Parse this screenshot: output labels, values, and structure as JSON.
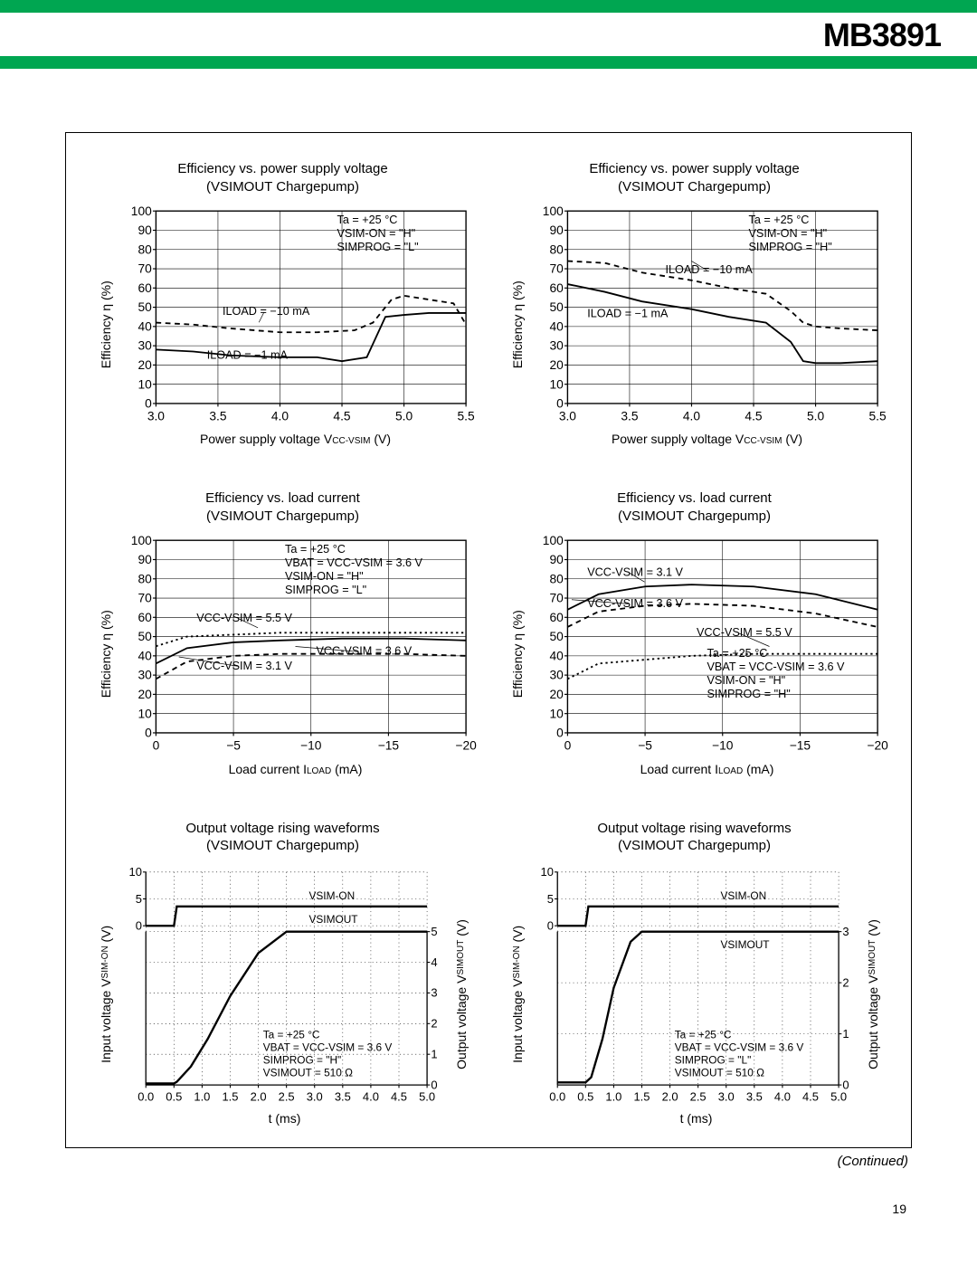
{
  "colors": {
    "green": "#00a651",
    "ink": "#000000",
    "bg": "#ffffff",
    "grid": "#000000"
  },
  "header": {
    "part_number": "MB3891"
  },
  "continued": "(Continued)",
  "page_number": "19",
  "charts": [
    {
      "id": "eff-vs-vcc-L",
      "title_l1": "Efficiency vs. power supply voltage",
      "title_l2": "(VSIMOUT Chargepump)",
      "ylabel": "Efficiency η (%)",
      "xlabel_pre": "Power supply voltage V",
      "xlabel_sub": "CC-VSIM",
      "xlabel_post": " (V)",
      "ylim": [
        0,
        100
      ],
      "ytick_step": 10,
      "xlim": [
        3.0,
        5.5
      ],
      "xticks": [
        3.0,
        3.5,
        4.0,
        4.5,
        5.0,
        5.5
      ],
      "conditions": [
        "Ta = +25 °C",
        "VSIM-ON = \"H\"",
        "SIMPROG = \"L\""
      ],
      "cond_pos": [
        210,
        20
      ],
      "series_labels": [
        {
          "text": "ILOAD = −10 mA",
          "x": 100,
          "y": 108,
          "leader_to": [
            135,
            115
          ]
        },
        {
          "text": "ILOAD = −1 mA",
          "x": 85,
          "y": 150
        }
      ],
      "series": [
        {
          "style": "dashed",
          "points": [
            [
              3.0,
              42
            ],
            [
              3.3,
              41
            ],
            [
              3.6,
              39
            ],
            [
              4.0,
              37
            ],
            [
              4.3,
              37
            ],
            [
              4.6,
              38
            ],
            [
              4.75,
              42
            ],
            [
              4.9,
              54
            ],
            [
              5.0,
              56
            ],
            [
              5.2,
              54
            ],
            [
              5.4,
              52
            ],
            [
              5.5,
              41
            ]
          ]
        },
        {
          "style": "solid",
          "points": [
            [
              3.0,
              28
            ],
            [
              3.3,
              27
            ],
            [
              3.6,
              25
            ],
            [
              4.0,
              24
            ],
            [
              4.3,
              24
            ],
            [
              4.5,
              22
            ],
            [
              4.7,
              24
            ],
            [
              4.8,
              38
            ],
            [
              4.85,
              45
            ],
            [
              5.0,
              46
            ],
            [
              5.2,
              47
            ],
            [
              5.5,
              47
            ]
          ]
        }
      ]
    },
    {
      "id": "eff-vs-vcc-H",
      "title_l1": "Efficiency vs. power supply voltage",
      "title_l2": "(VSIMOUT Chargepump)",
      "ylabel": "Efficiency η (%)",
      "xlabel_pre": "Power supply voltage V",
      "xlabel_sub": "CC-VSIM",
      "xlabel_post": " (V)",
      "ylim": [
        0,
        100
      ],
      "ytick_step": 10,
      "xlim": [
        3.0,
        5.5
      ],
      "xticks": [
        3.0,
        3.5,
        4.0,
        4.5,
        5.0,
        5.5
      ],
      "conditions": [
        "Ta = +25 °C",
        "VSIM-ON = \"H\"",
        "SIMPROG = \"H\""
      ],
      "cond_pos": [
        210,
        20
      ],
      "series_labels": [
        {
          "text": "ILOAD = −10 mA",
          "x": 130,
          "y": 68,
          "leader_to": [
            155,
            56
          ]
        },
        {
          "text": "ILOAD = −1 mA",
          "x": 55,
          "y": 110
        }
      ],
      "series": [
        {
          "style": "dashed",
          "points": [
            [
              3.0,
              74
            ],
            [
              3.3,
              73
            ],
            [
              3.6,
              68
            ],
            [
              4.0,
              64
            ],
            [
              4.3,
              60
            ],
            [
              4.6,
              57
            ],
            [
              4.8,
              48
            ],
            [
              4.9,
              42
            ],
            [
              5.0,
              40
            ],
            [
              5.2,
              39
            ],
            [
              5.5,
              38
            ]
          ]
        },
        {
          "style": "solid",
          "points": [
            [
              3.0,
              62
            ],
            [
              3.3,
              58
            ],
            [
              3.6,
              53
            ],
            [
              4.0,
              49
            ],
            [
              4.3,
              45
            ],
            [
              4.6,
              42
            ],
            [
              4.8,
              32
            ],
            [
              4.9,
              22
            ],
            [
              5.0,
              21
            ],
            [
              5.2,
              21
            ],
            [
              5.5,
              22
            ]
          ]
        }
      ]
    },
    {
      "id": "eff-vs-iload-L",
      "title_l1": "Efficiency vs. load current",
      "title_l2": "(VSIMOUT Chargepump)",
      "ylabel": "Efficiency η (%)",
      "xlabel_pre": "Load current I",
      "xlabel_sub": "LOAD",
      "xlabel_post": " (mA)",
      "ylim": [
        0,
        100
      ],
      "ytick_step": 10,
      "xlim": [
        0,
        20
      ],
      "xticks_labels": [
        "0",
        "−5",
        "−10",
        "−15",
        "−20"
      ],
      "xticks": [
        0,
        5,
        10,
        15,
        20
      ],
      "conditions": [
        "Ta = +25 °C",
        "VBAT = VCC-VSIM = 3.6 V",
        "VSIM-ON = \"H\"",
        "SIMPROG = \"L\""
      ],
      "cond_pos": [
        160,
        20
      ],
      "series_labels": [
        {
          "text": "VCC-VSIM = 5.5 V",
          "x": 75,
          "y": 86,
          "leader_to": [
            134,
            92
          ]
        },
        {
          "text": "VCC-VSIM = 3.6 V",
          "x": 190,
          "y": 118,
          "leader_to": [
            170,
            110
          ]
        },
        {
          "text": "VCC-VSIM = 3.1 V",
          "x": 75,
          "y": 132,
          "leader_to": [
            58,
            120
          ]
        }
      ],
      "series": [
        {
          "style": "solid",
          "points": [
            [
              0,
              36
            ],
            [
              2,
              44
            ],
            [
              5,
              47
            ],
            [
              8,
              48
            ],
            [
              12,
              49
            ],
            [
              16,
              49
            ],
            [
              20,
              48
            ]
          ]
        },
        {
          "style": "dashed",
          "points": [
            [
              0,
              28
            ],
            [
              2,
              37
            ],
            [
              5,
              40
            ],
            [
              8,
              41
            ],
            [
              12,
              41
            ],
            [
              16,
              41
            ],
            [
              20,
              40
            ]
          ]
        },
        {
          "style": "dotted",
          "points": [
            [
              0,
              45
            ],
            [
              2,
              50
            ],
            [
              5,
              51
            ],
            [
              8,
              52
            ],
            [
              12,
              52
            ],
            [
              16,
              52
            ],
            [
              20,
              52
            ]
          ]
        }
      ]
    },
    {
      "id": "eff-vs-iload-H",
      "title_l1": "Efficiency vs. load current",
      "title_l2": "(VSIMOUT Chargepump)",
      "ylabel": "Efficiency η (%)",
      "xlabel_pre": "Load current I",
      "xlabel_sub": "LOAD",
      "xlabel_post": " (mA)",
      "ylim": [
        0,
        100
      ],
      "ytick_step": 10,
      "xlim": [
        0,
        20
      ],
      "xticks_labels": [
        "0",
        "−5",
        "−10",
        "−15",
        "−20"
      ],
      "xticks": [
        0,
        5,
        10,
        15,
        20
      ],
      "conditions": [
        "Ta = +25 °C",
        "VBAT = VCC-VSIM = 3.6 V",
        "VSIM-ON = \"H\"",
        "SIMPROG = \"H\""
      ],
      "cond_pos": [
        170,
        120
      ],
      "series_labels": [
        {
          "text": "VCC-VSIM = 3.1 V",
          "x": 55,
          "y": 42,
          "leader_to": [
            110,
            48
          ]
        },
        {
          "text": "VCC-VSIM = 3.6 V",
          "x": 55,
          "y": 72,
          "leader_to": [
            40,
            65
          ]
        },
        {
          "text": "VCC-VSIM = 5.5 V",
          "x": 160,
          "y": 100,
          "leader_to": [
            230,
            110
          ]
        }
      ],
      "series": [
        {
          "style": "solid",
          "points": [
            [
              0,
              64
            ],
            [
              2,
              72
            ],
            [
              5,
              76
            ],
            [
              8,
              77
            ],
            [
              12,
              76
            ],
            [
              16,
              72
            ],
            [
              20,
              64
            ]
          ]
        },
        {
          "style": "dashed",
          "points": [
            [
              0,
              55
            ],
            [
              2,
              63
            ],
            [
              5,
              66
            ],
            [
              8,
              67
            ],
            [
              12,
              66
            ],
            [
              16,
              62
            ],
            [
              20,
              55
            ]
          ]
        },
        {
          "style": "dotted",
          "points": [
            [
              0,
              28
            ],
            [
              2,
              36
            ],
            [
              5,
              38
            ],
            [
              8,
              40
            ],
            [
              12,
              41
            ],
            [
              16,
              41
            ],
            [
              20,
              41
            ]
          ]
        }
      ]
    },
    {
      "id": "waveform-H",
      "title_l1": "Output voltage rising waveforms",
      "title_l2": "(VSIMOUT Chargepump)",
      "ylabel_pre": "Input voltage V",
      "ylabel_sub": "SIM-ON",
      "ylabel_post": " (V)",
      "ylabel2_pre": "Output voltage V",
      "ylabel2_sub": "SIMOUT",
      "ylabel2_post": " (V)",
      "xlabel": "t (ms)",
      "yrange_in": [
        0,
        10
      ],
      "yticks_in": [
        0,
        5,
        10
      ],
      "yrange_out": [
        0,
        5
      ],
      "yticks_out": [
        0,
        1,
        2,
        3,
        4,
        5
      ],
      "xlim": [
        0,
        5
      ],
      "xticks": [
        0.0,
        0.5,
        1.0,
        1.5,
        2.0,
        2.5,
        3.0,
        3.5,
        4.0,
        4.5,
        5.0
      ],
      "conditions": [
        "Ta = +25 °C",
        "VBAT = VCC-VSIM = 3.6 V",
        "SIMPROG = \"H\"",
        "VSIMOUT = 510 Ω"
      ],
      "series_labels": [
        {
          "text": "VSIM-ON",
          "x": 195,
          "y": 38
        },
        {
          "text": "VSIMOUT",
          "x": 195,
          "y": 62
        }
      ],
      "trace_in": [
        [
          0,
          0
        ],
        [
          0.5,
          0
        ],
        [
          0.55,
          3.6
        ],
        [
          5,
          3.6
        ]
      ],
      "trace_out": [
        [
          0,
          0.05
        ],
        [
          0.5,
          0.05
        ],
        [
          0.55,
          0.1
        ],
        [
          0.8,
          0.6
        ],
        [
          1.1,
          1.5
        ],
        [
          1.5,
          2.9
        ],
        [
          2.0,
          4.3
        ],
        [
          2.5,
          5.0
        ],
        [
          2.7,
          5.0
        ],
        [
          5,
          5.0
        ]
      ]
    },
    {
      "id": "waveform-L",
      "title_l1": "Output voltage rising waveforms",
      "title_l2": "(VSIMOUT Chargepump)",
      "ylabel_pre": "Input voltage V",
      "ylabel_sub": "SIM-ON",
      "ylabel_post": " (V)",
      "ylabel2_pre": "Output voltage V",
      "ylabel2_sub": "SIMOUT",
      "ylabel2_post": " (V)",
      "xlabel": "t (ms)",
      "yrange_in": [
        0,
        10
      ],
      "yticks_in": [
        0,
        5,
        10
      ],
      "yrange_out": [
        0,
        3
      ],
      "yticks_out": [
        0,
        1,
        2,
        3
      ],
      "xlim": [
        0,
        5
      ],
      "xticks": [
        0.0,
        0.5,
        1.0,
        1.5,
        2.0,
        2.5,
        3.0,
        3.5,
        4.0,
        4.5,
        5.0
      ],
      "conditions": [
        "Ta = +25 °C",
        "VBAT = VCC-VSIM = 3.6 V",
        "SIMPROG = \"L\"",
        "VSIMOUT = 510 Ω"
      ],
      "series_labels": [
        {
          "text": "VSIM-ON",
          "x": 195,
          "y": 38
        },
        {
          "text": "VSIMOUT",
          "x": 195,
          "y": 88
        }
      ],
      "trace_in": [
        [
          0,
          0
        ],
        [
          0.5,
          0
        ],
        [
          0.55,
          3.6
        ],
        [
          5,
          3.6
        ]
      ],
      "trace_out": [
        [
          0,
          0.05
        ],
        [
          0.5,
          0.05
        ],
        [
          0.6,
          0.15
        ],
        [
          0.8,
          0.9
        ],
        [
          1.0,
          1.9
        ],
        [
          1.3,
          2.8
        ],
        [
          1.5,
          3.0
        ],
        [
          2.0,
          3.0
        ],
        [
          5,
          3.0
        ]
      ]
    }
  ]
}
